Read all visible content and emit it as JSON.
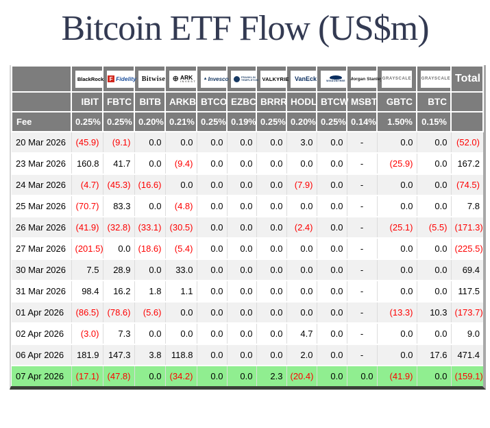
{
  "page": {
    "title": "Bitcoin ETF Flow (US$m)"
  },
  "colors": {
    "header_bg": "#7d7d7d",
    "alt_row_bg": "#f1f1f1",
    "highlight_row_bg": "#90ee90",
    "negative_text": "#fe0000",
    "title_text": "#333a52",
    "bottom_border": "#3a4038"
  },
  "chart_data": {
    "type": "table",
    "title": "Bitcoin ETF Flow (US$m)",
    "unit": "US$m",
    "negative_format": "parentheses shown in red",
    "fee_label": "Fee",
    "total_label": "Total",
    "providers": [
      {
        "icon": "blackrock-logo",
        "label": "BlackRock"
      },
      {
        "icon": "fidelity-logo",
        "icon_letter": "F",
        "label": "Fidelity"
      },
      {
        "icon": "bitwise-logo",
        "label": "Bitwise"
      },
      {
        "icon": "ark-invest-logo",
        "label": "ARK",
        "sublabel": "INVEST"
      },
      {
        "icon": "invesco-logo",
        "label": "Invesco"
      },
      {
        "icon": "franklin-templeton-logo",
        "label": "FRANKLIN",
        "sublabel": "TEMPLETON"
      },
      {
        "icon": "valkyrie-logo",
        "label": "VALKYRIE"
      },
      {
        "icon": "vaneck-logo",
        "label": "VanEck"
      },
      {
        "icon": "wisdomtree-logo",
        "label": "WISDOMTREE"
      },
      {
        "icon": "morgan-stanley-logo",
        "label": "Morgan Stanley"
      },
      {
        "icon": "grayscale-logo",
        "label": "GRAYSCALE"
      },
      {
        "icon": "grayscale-btc-logo",
        "label": "GRAYSCALE"
      }
    ],
    "tickers": [
      "IBIT",
      "FBTC",
      "BITB",
      "ARKB",
      "BTCO",
      "EZBC",
      "BRRR",
      "HODL",
      "BTCW",
      "MSBT",
      "GBTC",
      "BTC"
    ],
    "fees": [
      "0.25%",
      "0.25%",
      "0.20%",
      "0.21%",
      "0.25%",
      "0.19%",
      "0.25%",
      "0.20%",
      "0.25%",
      "0.14%",
      "1.50%",
      "0.15%"
    ],
    "rows": [
      {
        "date": "20 Mar 2026",
        "highlight": false,
        "values": [
          "(45.9)",
          "(9.1)",
          "0.0",
          "0.0",
          "0.0",
          "0.0",
          "0.0",
          "3.0",
          "0.0",
          "-",
          "0.0",
          "0.0",
          "(52.0)"
        ]
      },
      {
        "date": "23 Mar 2026",
        "highlight": false,
        "values": [
          "160.8",
          "41.7",
          "0.0",
          "(9.4)",
          "0.0",
          "0.0",
          "0.0",
          "0.0",
          "0.0",
          "-",
          "(25.9)",
          "0.0",
          "167.2"
        ]
      },
      {
        "date": "24 Mar 2026",
        "highlight": false,
        "values": [
          "(4.7)",
          "(45.3)",
          "(16.6)",
          "0.0",
          "0.0",
          "0.0",
          "0.0",
          "(7.9)",
          "0.0",
          "-",
          "0.0",
          "0.0",
          "(74.5)"
        ]
      },
      {
        "date": "25 Mar 2026",
        "highlight": false,
        "values": [
          "(70.7)",
          "83.3",
          "0.0",
          "(4.8)",
          "0.0",
          "0.0",
          "0.0",
          "0.0",
          "0.0",
          "-",
          "0.0",
          "0.0",
          "7.8"
        ]
      },
      {
        "date": "26 Mar 2026",
        "highlight": false,
        "values": [
          "(41.9)",
          "(32.8)",
          "(33.1)",
          "(30.5)",
          "0.0",
          "0.0",
          "0.0",
          "(2.4)",
          "0.0",
          "-",
          "(25.1)",
          "(5.5)",
          "(171.3)"
        ]
      },
      {
        "date": "27 Mar 2026",
        "highlight": false,
        "values": [
          "(201.5)",
          "0.0",
          "(18.6)",
          "(5.4)",
          "0.0",
          "0.0",
          "0.0",
          "0.0",
          "0.0",
          "-",
          "0.0",
          "0.0",
          "(225.5)"
        ]
      },
      {
        "date": "30 Mar 2026",
        "highlight": false,
        "values": [
          "7.5",
          "28.9",
          "0.0",
          "33.0",
          "0.0",
          "0.0",
          "0.0",
          "0.0",
          "0.0",
          "-",
          "0.0",
          "0.0",
          "69.4"
        ]
      },
      {
        "date": "31 Mar 2026",
        "highlight": false,
        "values": [
          "98.4",
          "16.2",
          "1.8",
          "1.1",
          "0.0",
          "0.0",
          "0.0",
          "0.0",
          "0.0",
          "-",
          "0.0",
          "0.0",
          "117.5"
        ]
      },
      {
        "date": "01 Apr 2026",
        "highlight": false,
        "values": [
          "(86.5)",
          "(78.6)",
          "(5.6)",
          "0.0",
          "0.0",
          "0.0",
          "0.0",
          "0.0",
          "0.0",
          "-",
          "(13.3)",
          "10.3",
          "(173.7)"
        ]
      },
      {
        "date": "02 Apr 2026",
        "highlight": false,
        "values": [
          "(3.0)",
          "7.3",
          "0.0",
          "0.0",
          "0.0",
          "0.0",
          "0.0",
          "4.7",
          "0.0",
          "-",
          "0.0",
          "0.0",
          "9.0"
        ]
      },
      {
        "date": "06 Apr 2026",
        "highlight": false,
        "values": [
          "181.9",
          "147.3",
          "3.8",
          "118.8",
          "0.0",
          "0.0",
          "0.0",
          "2.0",
          "0.0",
          "-",
          "0.0",
          "17.6",
          "471.4"
        ]
      },
      {
        "date": "07 Apr 2026",
        "highlight": true,
        "values": [
          "(17.1)",
          "(47.8)",
          "0.0",
          "(34.2)",
          "0.0",
          "0.0",
          "2.3",
          "(20.4)",
          "0.0",
          "0.0",
          "(41.9)",
          "0.0",
          "(159.1)"
        ]
      }
    ]
  }
}
